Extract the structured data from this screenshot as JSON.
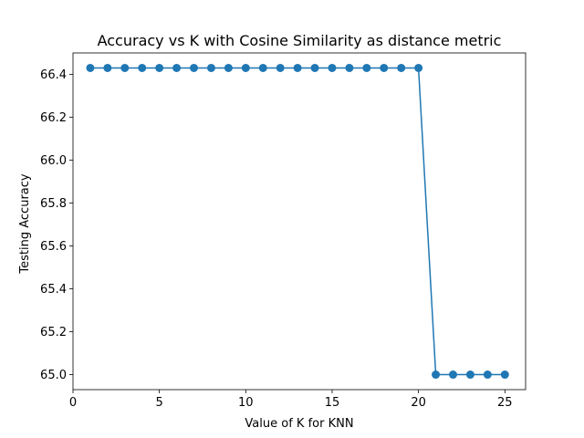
{
  "chart_data": {
    "type": "line",
    "title": "Accuracy vs K with Cosine Similarity as distance metric",
    "xlabel": "Value of K for KNN",
    "ylabel": "Testing Accuracy",
    "xlim": [
      0.0,
      26.2
    ],
    "ylim": [
      64.93,
      66.5
    ],
    "xticks": [
      0,
      5,
      10,
      15,
      20,
      25
    ],
    "yticks": [
      65.0,
      65.2,
      65.4,
      65.6,
      65.8,
      66.0,
      66.2,
      66.4
    ],
    "xtick_labels": [
      "0",
      "5",
      "10",
      "15",
      "20",
      "25"
    ],
    "ytick_labels": [
      "65.0",
      "65.2",
      "65.4",
      "65.6",
      "65.8",
      "66.0",
      "66.2",
      "66.4"
    ],
    "grid": false,
    "series": [
      {
        "color": "#1f77b4",
        "marker": "circle",
        "x": [
          1,
          2,
          3,
          4,
          5,
          6,
          7,
          8,
          9,
          10,
          11,
          12,
          13,
          14,
          15,
          16,
          17,
          18,
          19,
          20,
          21,
          22,
          23,
          24,
          25
        ],
        "y": [
          66.43,
          66.43,
          66.43,
          66.43,
          66.43,
          66.43,
          66.43,
          66.43,
          66.43,
          66.43,
          66.43,
          66.43,
          66.43,
          66.43,
          66.43,
          66.43,
          66.43,
          66.43,
          66.43,
          66.43,
          65.0,
          65.0,
          65.0,
          65.0,
          65.0
        ]
      }
    ]
  }
}
